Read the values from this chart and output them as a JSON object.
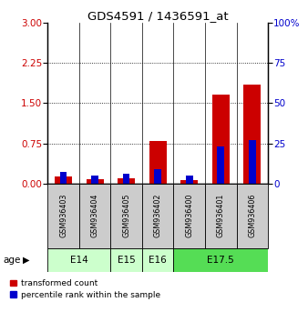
{
  "title": "GDS4591 / 1436591_at",
  "samples": [
    "GSM936403",
    "GSM936404",
    "GSM936405",
    "GSM936402",
    "GSM936400",
    "GSM936401",
    "GSM936406"
  ],
  "transformed_count": [
    0.13,
    0.08,
    0.1,
    0.8,
    0.07,
    1.65,
    1.85
  ],
  "percentile_rank": [
    7,
    5,
    6,
    9,
    5,
    23,
    27
  ],
  "age_groups": [
    {
      "label": "E14",
      "start": 0,
      "end": 1,
      "color": "#ccffcc"
    },
    {
      "label": "E15",
      "start": 2,
      "end": 2,
      "color": "#ccffcc"
    },
    {
      "label": "E16",
      "start": 3,
      "end": 3,
      "color": "#ccffcc"
    },
    {
      "label": "E17.5",
      "start": 4,
      "end": 6,
      "color": "#55dd55"
    }
  ],
  "ylim_left": [
    0,
    3
  ],
  "ylim_right": [
    0,
    100
  ],
  "yticks_left": [
    0,
    0.75,
    1.5,
    2.25,
    3
  ],
  "yticks_right": [
    0,
    25,
    50,
    75,
    100
  ],
  "bar_color_red": "#cc0000",
  "bar_color_blue": "#0000cc",
  "background_color": "#ffffff",
  "sample_bg_color": "#cccccc",
  "legend_labels": [
    "transformed count",
    "percentile rank within the sample"
  ],
  "age_label": "age"
}
